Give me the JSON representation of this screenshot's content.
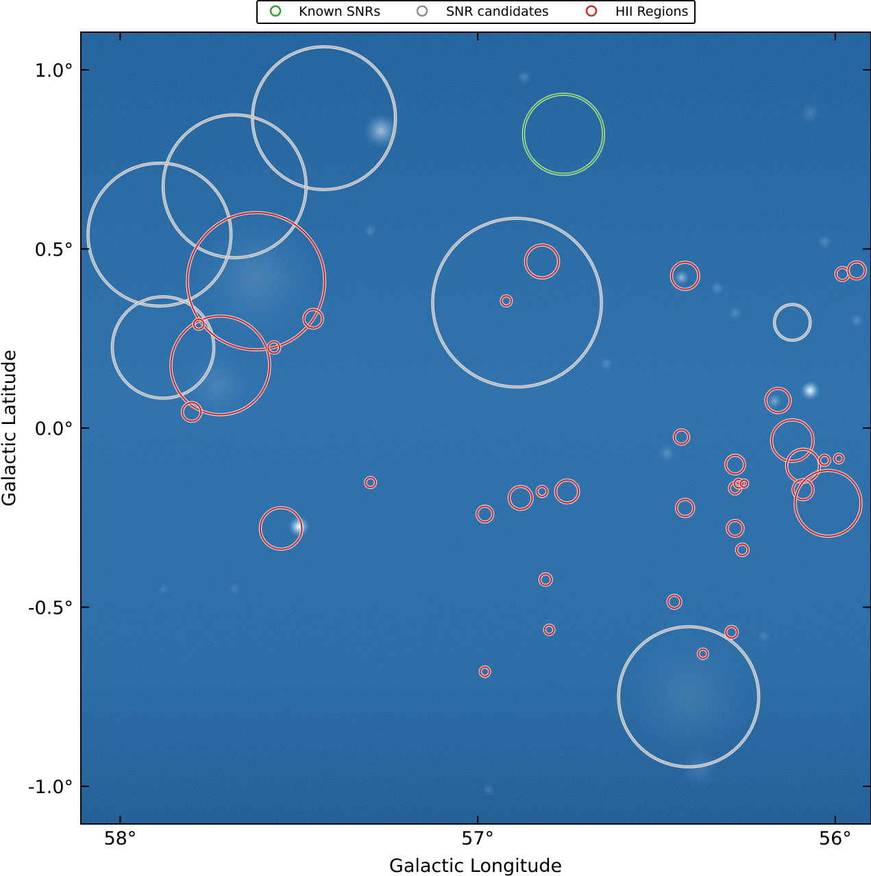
{
  "chart_data": {
    "type": "scatter",
    "title": "",
    "xlabel": "Galactic Longitude",
    "ylabel": "Galactic Latitude",
    "xlim": [
      58.11,
      55.9
    ],
    "ylim": [
      -1.105,
      1.105
    ],
    "x_axis_reversed": true,
    "xticks": [
      58,
      57,
      56
    ],
    "xtick_labels": [
      "58°",
      "57°",
      "56°"
    ],
    "yticks": [
      1.0,
      0.5,
      0.0,
      -0.5,
      -1.0
    ],
    "ytick_labels": [
      "1.0°",
      "0.5°",
      "0.0°",
      "-0.5°",
      "-1.0°"
    ],
    "grid": false,
    "legend_position": "top-center",
    "background": "blue intensity map",
    "legend": [
      {
        "label": "Known SNRs",
        "color": "#2ca02c"
      },
      {
        "label": "SNR candidates",
        "color": "#8c8c8c"
      },
      {
        "label": "HII Regions",
        "color": "#d62728"
      }
    ],
    "series": [
      {
        "name": "Known SNRs",
        "color": "#2ca02c",
        "points": [
          {
            "l": 56.76,
            "b": 0.82,
            "r": 0.112
          }
        ]
      },
      {
        "name": "SNR candidates",
        "color": "#b4b4b4",
        "points": [
          {
            "l": 57.43,
            "b": 0.865,
            "r": 0.2
          },
          {
            "l": 57.68,
            "b": 0.675,
            "r": 0.2
          },
          {
            "l": 57.89,
            "b": 0.54,
            "r": 0.2
          },
          {
            "l": 57.88,
            "b": 0.225,
            "r": 0.142
          },
          {
            "l": 56.89,
            "b": 0.35,
            "r": 0.236
          },
          {
            "l": 56.41,
            "b": -0.75,
            "r": 0.196
          },
          {
            "l": 56.12,
            "b": 0.295,
            "r": 0.05
          }
        ]
      },
      {
        "name": "HII Regions",
        "color": "#d62728",
        "points": [
          {
            "l": 57.62,
            "b": 0.41,
            "r": 0.192
          },
          {
            "l": 57.72,
            "b": 0.175,
            "r": 0.138
          },
          {
            "l": 57.8,
            "b": 0.045,
            "r": 0.026
          },
          {
            "l": 57.78,
            "b": 0.29,
            "r": 0.014
          },
          {
            "l": 57.57,
            "b": 0.225,
            "r": 0.016
          },
          {
            "l": 57.46,
            "b": 0.305,
            "r": 0.026
          },
          {
            "l": 56.82,
            "b": 0.465,
            "r": 0.046
          },
          {
            "l": 56.92,
            "b": 0.355,
            "r": 0.014
          },
          {
            "l": 57.55,
            "b": -0.28,
            "r": 0.058
          },
          {
            "l": 57.3,
            "b": -0.152,
            "r": 0.014
          },
          {
            "l": 56.88,
            "b": -0.195,
            "r": 0.032
          },
          {
            "l": 56.98,
            "b": -0.24,
            "r": 0.022
          },
          {
            "l": 56.82,
            "b": -0.177,
            "r": 0.014
          },
          {
            "l": 56.75,
            "b": -0.177,
            "r": 0.032
          },
          {
            "l": 56.81,
            "b": -0.423,
            "r": 0.016
          },
          {
            "l": 56.8,
            "b": -0.563,
            "r": 0.013
          },
          {
            "l": 56.98,
            "b": -0.68,
            "r": 0.013
          },
          {
            "l": 56.42,
            "b": 0.425,
            "r": 0.038
          },
          {
            "l": 56.43,
            "b": -0.025,
            "r": 0.02
          },
          {
            "l": 56.42,
            "b": -0.223,
            "r": 0.024
          },
          {
            "l": 56.45,
            "b": -0.485,
            "r": 0.018
          },
          {
            "l": 56.37,
            "b": -0.63,
            "r": 0.013
          },
          {
            "l": 56.28,
            "b": -0.102,
            "r": 0.026
          },
          {
            "l": 56.28,
            "b": -0.168,
            "r": 0.016
          },
          {
            "l": 56.27,
            "b": -0.155,
            "r": 0.012
          },
          {
            "l": 56.255,
            "b": -0.155,
            "r": 0.01
          },
          {
            "l": 56.28,
            "b": -0.28,
            "r": 0.022
          },
          {
            "l": 56.26,
            "b": -0.34,
            "r": 0.016
          },
          {
            "l": 56.29,
            "b": -0.57,
            "r": 0.016
          },
          {
            "l": 56.16,
            "b": 0.077,
            "r": 0.034
          },
          {
            "l": 56.12,
            "b": -0.035,
            "r": 0.058
          },
          {
            "l": 56.09,
            "b": -0.105,
            "r": 0.046
          },
          {
            "l": 56.09,
            "b": -0.172,
            "r": 0.028
          },
          {
            "l": 56.02,
            "b": -0.21,
            "r": 0.092
          },
          {
            "l": 56.03,
            "b": -0.09,
            "r": 0.014
          },
          {
            "l": 55.99,
            "b": -0.085,
            "r": 0.012
          },
          {
            "l": 55.98,
            "b": 0.43,
            "r": 0.018
          },
          {
            "l": 55.94,
            "b": 0.44,
            "r": 0.024
          }
        ]
      }
    ],
    "blobs": [
      {
        "l": 57.5,
        "b": -0.275,
        "r": 0.03,
        "a": 1.0
      },
      {
        "l": 56.07,
        "b": 0.105,
        "r": 0.028,
        "a": 0.95
      },
      {
        "l": 57.27,
        "b": 0.83,
        "r": 0.05,
        "a": 0.55
      },
      {
        "l": 56.43,
        "b": 0.42,
        "r": 0.022,
        "a": 0.5
      },
      {
        "l": 56.17,
        "b": 0.075,
        "r": 0.022,
        "a": 0.4
      },
      {
        "l": 57.62,
        "b": 0.42,
        "r": 0.18,
        "a": 0.14
      },
      {
        "l": 57.73,
        "b": 0.12,
        "r": 0.1,
        "a": 0.12
      },
      {
        "l": 56.41,
        "b": -0.75,
        "r": 0.18,
        "a": 0.1
      },
      {
        "l": 56.47,
        "b": -0.07,
        "r": 0.025,
        "a": 0.22
      },
      {
        "l": 56.64,
        "b": 0.18,
        "r": 0.02,
        "a": 0.2
      },
      {
        "l": 56.33,
        "b": 0.39,
        "r": 0.022,
        "a": 0.22
      },
      {
        "l": 56.28,
        "b": 0.32,
        "r": 0.022,
        "a": 0.2
      },
      {
        "l": 56.03,
        "b": 0.52,
        "r": 0.022,
        "a": 0.2
      },
      {
        "l": 55.94,
        "b": 0.3,
        "r": 0.022,
        "a": 0.2
      },
      {
        "l": 56.07,
        "b": 0.88,
        "r": 0.03,
        "a": 0.15
      },
      {
        "l": 56.87,
        "b": 0.98,
        "r": 0.022,
        "a": 0.2
      },
      {
        "l": 57.3,
        "b": 0.55,
        "r": 0.02,
        "a": 0.18
      },
      {
        "l": 56.97,
        "b": -1.01,
        "r": 0.02,
        "a": 0.15
      },
      {
        "l": 56.2,
        "b": -0.58,
        "r": 0.02,
        "a": 0.15
      },
      {
        "l": 57.88,
        "b": -0.45,
        "r": 0.02,
        "a": 0.12
      },
      {
        "l": 57.68,
        "b": -0.45,
        "r": 0.02,
        "a": 0.12
      },
      {
        "l": 56.38,
        "b": -0.95,
        "r": 0.06,
        "a": 0.12
      }
    ]
  }
}
